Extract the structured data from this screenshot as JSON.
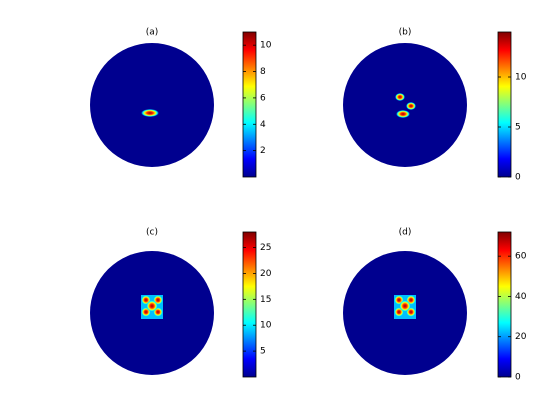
{
  "chart_data": [
    {
      "type": "heatmap",
      "title": "(a)",
      "colormap": "jet",
      "clim": [
        0,
        11
      ],
      "cticks": [
        2,
        4,
        6,
        8,
        10
      ]
    },
    {
      "type": "heatmap",
      "title": "(b)",
      "colormap": "jet",
      "clim": [
        0,
        14.5
      ],
      "cticks": [
        0,
        5,
        10
      ]
    },
    {
      "type": "heatmap",
      "title": "(c)",
      "colormap": "jet",
      "clim": [
        0,
        28
      ],
      "cticks": [
        5,
        10,
        15,
        20,
        25
      ]
    },
    {
      "type": "heatmap",
      "title": "(d)",
      "colormap": "jet",
      "clim": [
        0,
        72
      ],
      "cticks": [
        0,
        20,
        40,
        60
      ]
    }
  ]
}
